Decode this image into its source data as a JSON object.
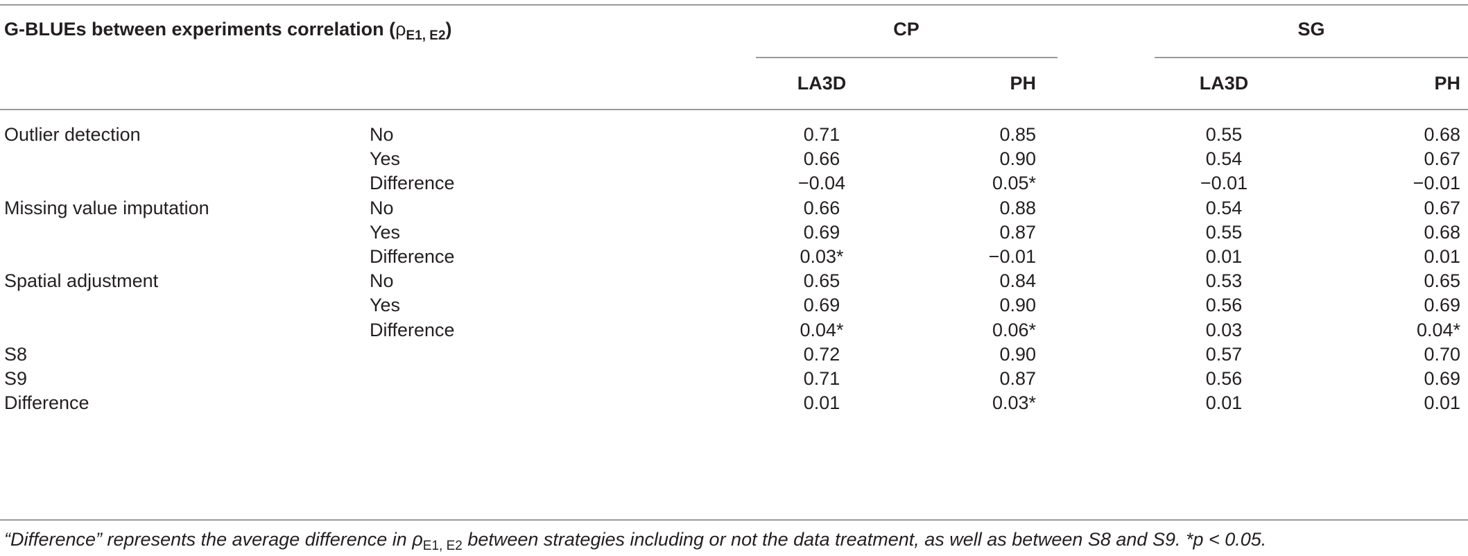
{
  "header": {
    "title_main": "G-BLUEs between experiments correlation (",
    "title_rho": "ρ",
    "title_sub": "E1, E2",
    "title_close": ")",
    "group_cp": "CP",
    "group_sg": "SG",
    "col_cp_la3d": "LA3D",
    "col_cp_ph": "PH",
    "col_sg_la3d": "LA3D",
    "col_sg_ph": "PH"
  },
  "rows": [
    {
      "label": "Outlier detection",
      "sub": "No",
      "cp_la3d": "0.71",
      "cp_ph": "0.85",
      "sg_la3d": "0.55",
      "sg_ph": "0.68"
    },
    {
      "label": "",
      "sub": "Yes",
      "cp_la3d": "0.66",
      "cp_ph": "0.90",
      "sg_la3d": "0.54",
      "sg_ph": "0.67"
    },
    {
      "label": "",
      "sub": "Difference",
      "cp_la3d": "−0.04",
      "cp_ph": "0.05*",
      "sg_la3d": "−0.01",
      "sg_ph": "−0.01"
    },
    {
      "label": "Missing value imputation",
      "sub": "No",
      "cp_la3d": "0.66",
      "cp_ph": "0.88",
      "sg_la3d": "0.54",
      "sg_ph": "0.67"
    },
    {
      "label": "",
      "sub": "Yes",
      "cp_la3d": "0.69",
      "cp_ph": "0.87",
      "sg_la3d": "0.55",
      "sg_ph": "0.68"
    },
    {
      "label": "",
      "sub": "Difference",
      "cp_la3d": "0.03*",
      "cp_ph": "−0.01",
      "sg_la3d": "0.01",
      "sg_ph": "0.01"
    },
    {
      "label": "Spatial adjustment",
      "sub": "No",
      "cp_la3d": "0.65",
      "cp_ph": "0.84",
      "sg_la3d": "0.53",
      "sg_ph": "0.65"
    },
    {
      "label": "",
      "sub": "Yes",
      "cp_la3d": "0.69",
      "cp_ph": "0.90",
      "sg_la3d": "0.56",
      "sg_ph": "0.69"
    },
    {
      "label": "",
      "sub": "Difference",
      "cp_la3d": "0.04*",
      "cp_ph": "0.06*",
      "sg_la3d": "0.03",
      "sg_ph": "0.04*"
    },
    {
      "label": "S8",
      "sub": "",
      "cp_la3d": "0.72",
      "cp_ph": "0.90",
      "sg_la3d": "0.57",
      "sg_ph": "0.70"
    },
    {
      "label": "S9",
      "sub": "",
      "cp_la3d": "0.71",
      "cp_ph": "0.87",
      "sg_la3d": "0.56",
      "sg_ph": "0.69"
    },
    {
      "label": "Difference",
      "sub": "",
      "cp_la3d": "0.01",
      "cp_ph": "0.03*",
      "sg_la3d": "0.01",
      "sg_ph": "0.01"
    }
  ],
  "footnote": {
    "part1": "“Difference” represents the average difference in ",
    "rho": "ρ",
    "sub": "E1, E2",
    "part2": " between strategies including or not the data treatment, as well as between S8 and S9. *p < 0.05."
  }
}
